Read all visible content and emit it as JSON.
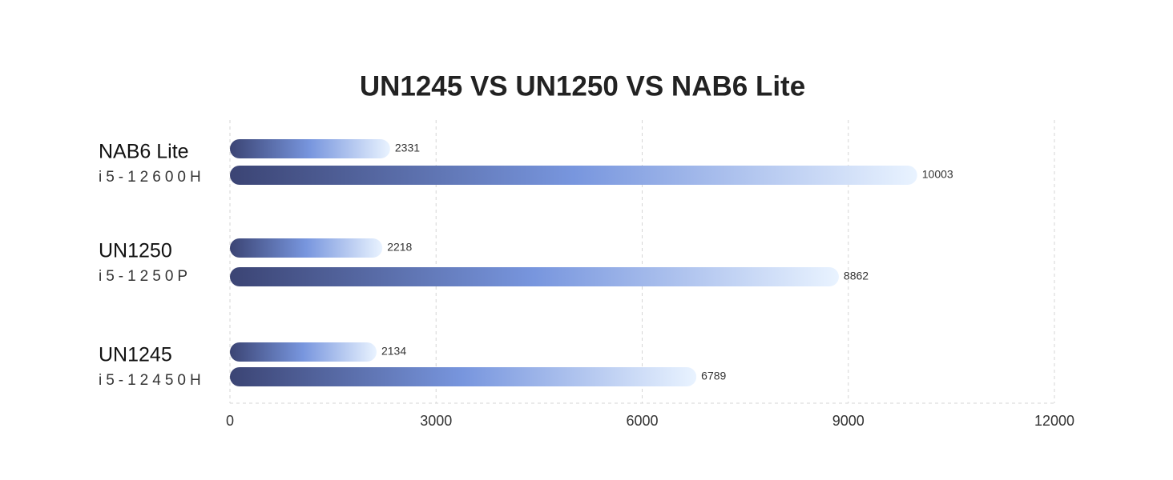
{
  "chart_data": {
    "type": "bar",
    "orientation": "horizontal",
    "title": "UN1245 VS UN1250 VS NAB6 Lite",
    "categories": [
      "NAB6 Lite",
      "UN1250",
      "UN1245"
    ],
    "category_cpus": [
      "i5-12600H",
      "i5-1250P",
      "i5-12450H"
    ],
    "series": [
      {
        "values": [
          2331,
          2218,
          2134
        ]
      },
      {
        "values": [
          10003,
          8862,
          6789
        ]
      }
    ],
    "gradient": [
      "#3b4474",
      "#7896de",
      "#e9f3ff"
    ],
    "xlim": [
      0,
      12000
    ],
    "xticks": [
      0,
      3000,
      6000,
      9000,
      12000
    ],
    "grid": true
  }
}
